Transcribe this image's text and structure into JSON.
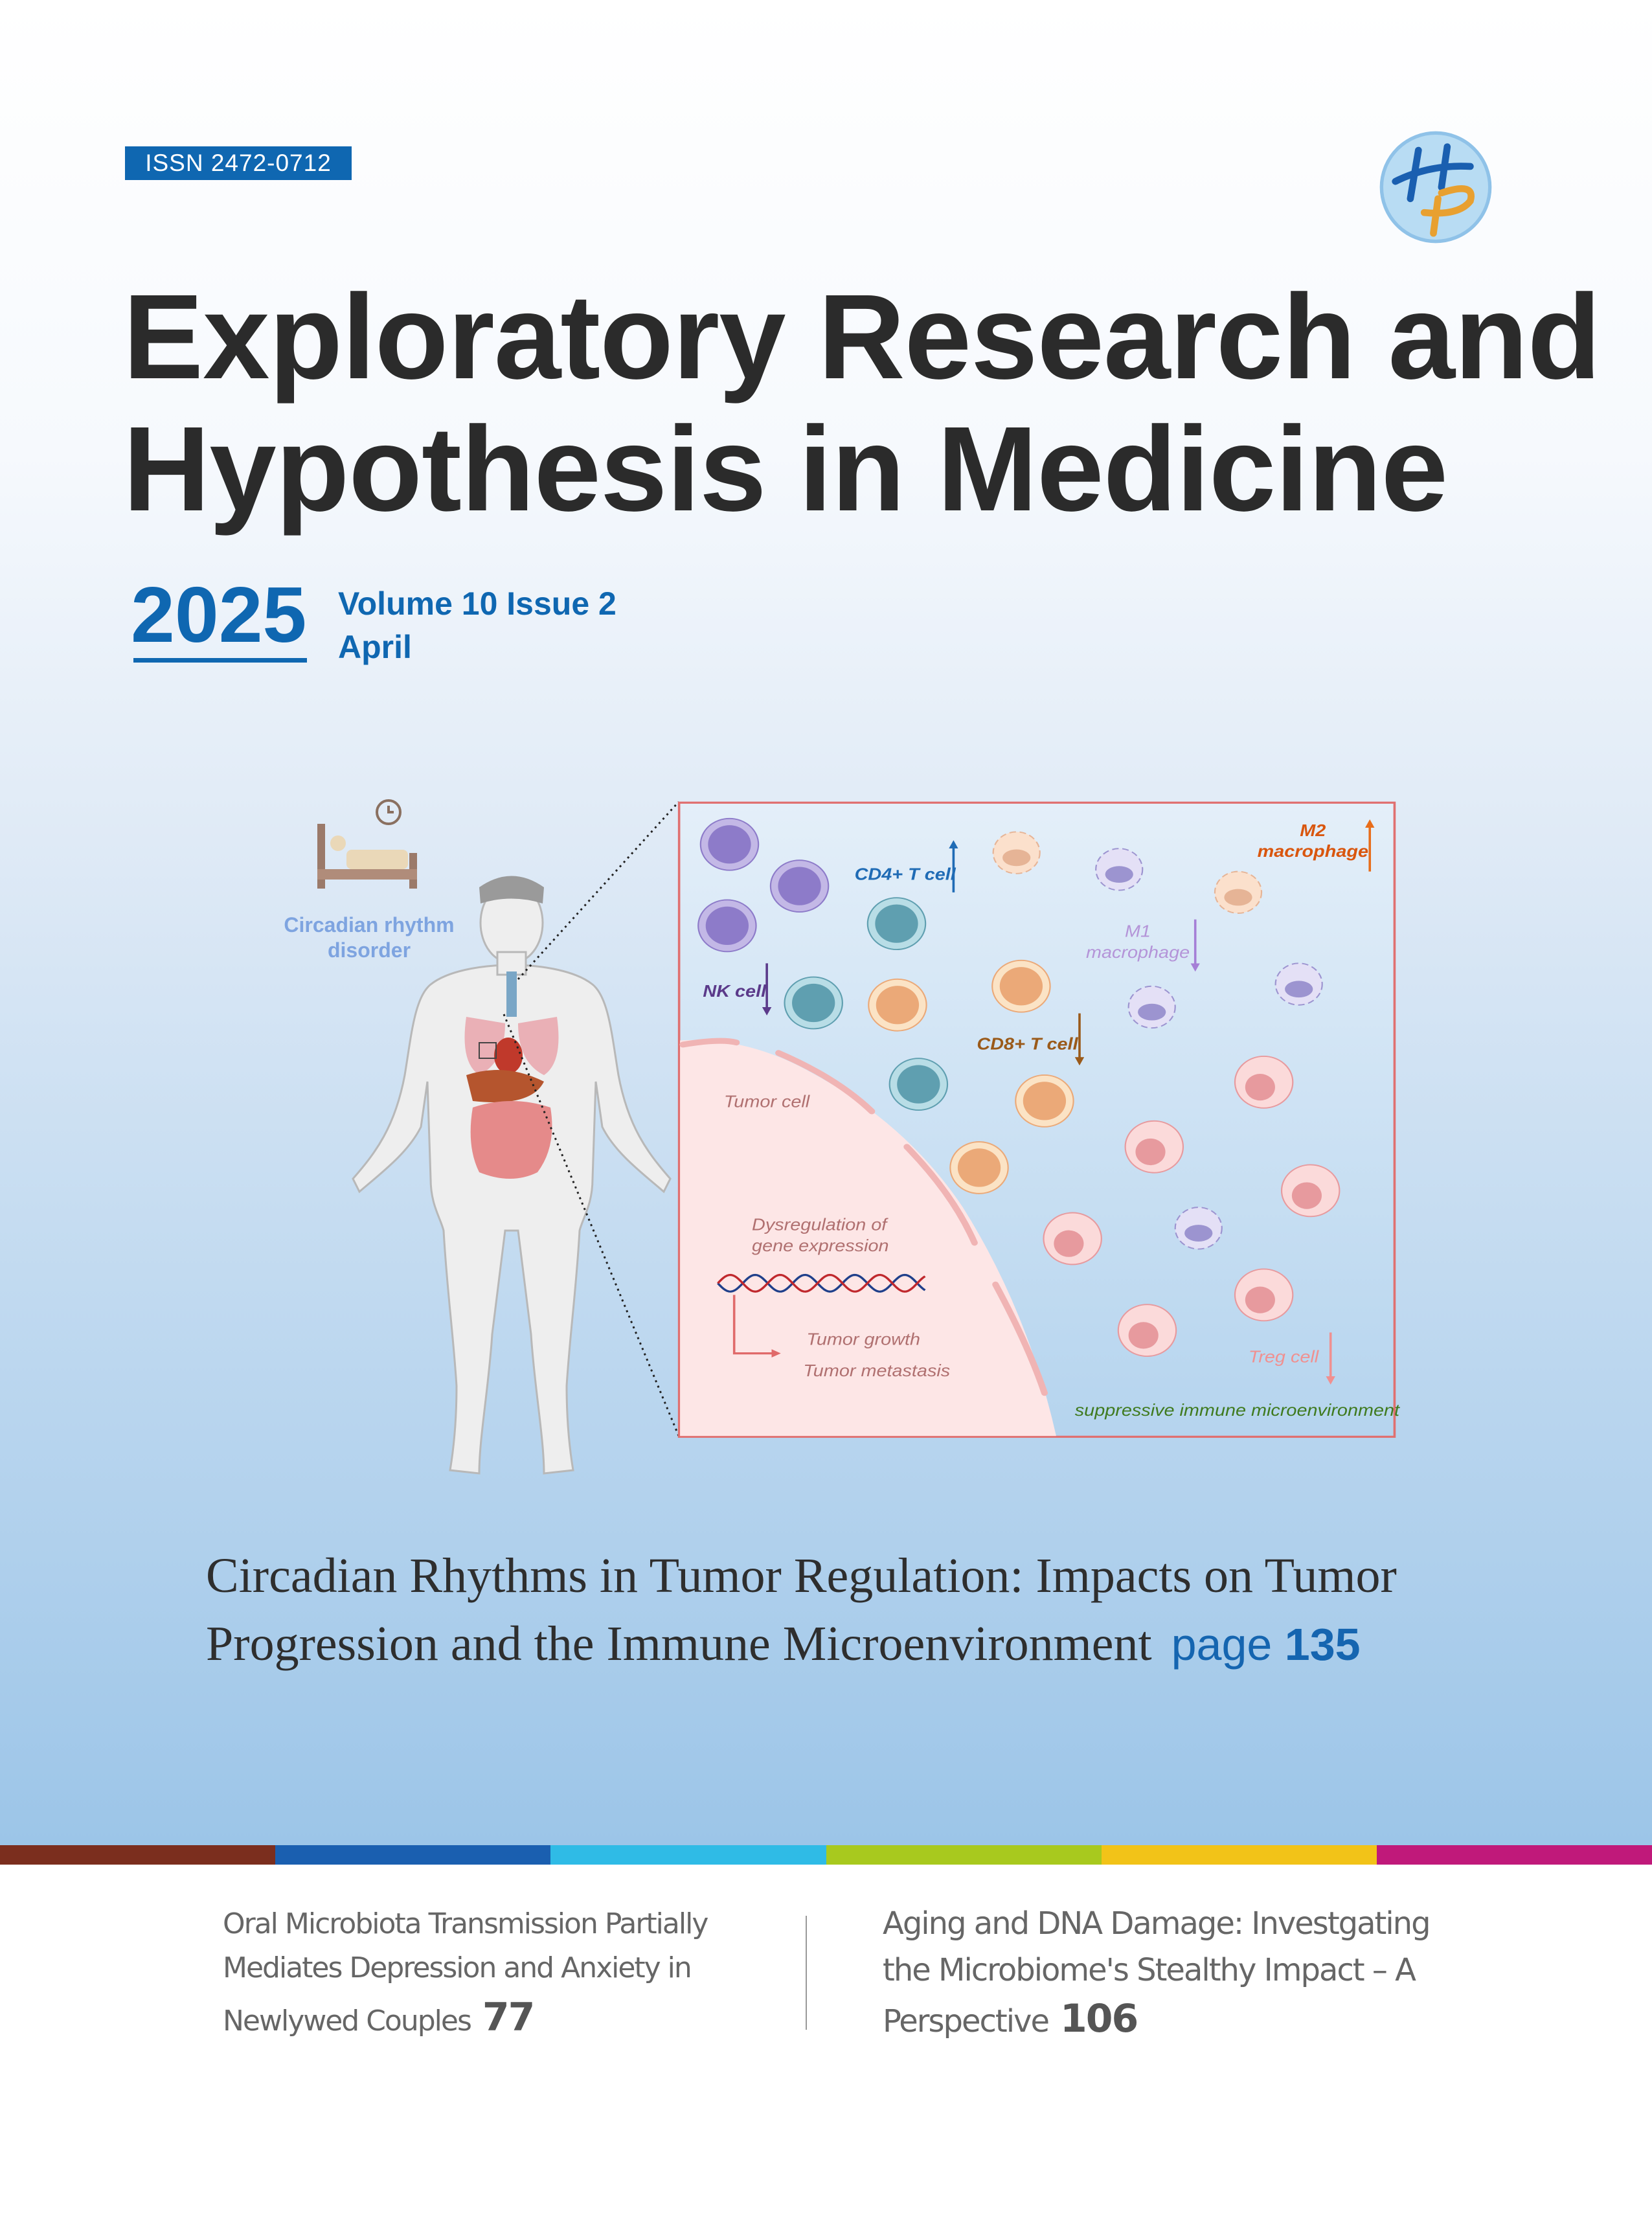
{
  "issn": "ISSN  2472-0712",
  "logo": {
    "text": "HP",
    "colors": {
      "h": "#1a5fb0",
      "p": "#e8a030",
      "bg": "#b8dcf3"
    }
  },
  "journal": {
    "title_line1": "Exploratory Research and",
    "title_line2": "Hypothesis in Medicine"
  },
  "issue": {
    "year": "2025",
    "volume": "Volume 10 Issue 2",
    "month": "April"
  },
  "figure": {
    "left_label_line1": "Circadian rhythm",
    "left_label_line2": "disorder",
    "labels": {
      "cd4": "CD4+ T cell",
      "nk": "NK cell",
      "m1_line1": "M1",
      "m1_line2": "macrophage",
      "cd8": "CD8+ T cell",
      "m2_line1": "M2",
      "m2_line2": "macrophage",
      "tumor_cell": "Tumor cell",
      "dysreg_line1": "Dysregulation of",
      "dysreg_line2": "gene expression",
      "growth": "Tumor growth",
      "metastasis": "Tumor metastasis",
      "treg": "Treg cell",
      "suppressive": "suppressive immune microenvironment"
    },
    "trends": {
      "cd4": "up",
      "nk": "down",
      "m1": "down",
      "cd8": "down",
      "m2": "up",
      "treg": "down"
    }
  },
  "cover_article": {
    "line1": "Circadian Rhythms in Tumor Regulation: Impacts on Tumor",
    "line2": "Progression and the Immune Microenvironment",
    "page_word": "page",
    "page_number": "135"
  },
  "color_bar": [
    "#7b2e1e",
    "#1a5fb0",
    "#2fbbe6",
    "#a8c91e",
    "#f2c318",
    "#c0197a"
  ],
  "articles": [
    {
      "lines": [
        "Oral Microbiota Transmission Partially",
        "Mediates Depression and Anxiety in",
        "Newlywed Couples"
      ],
      "page": "77"
    },
    {
      "lines": [
        "Aging and DNA Damage: Investgating",
        "the Microbiome's Stealthy Impact – A",
        "Perspective"
      ],
      "page": "106"
    }
  ]
}
